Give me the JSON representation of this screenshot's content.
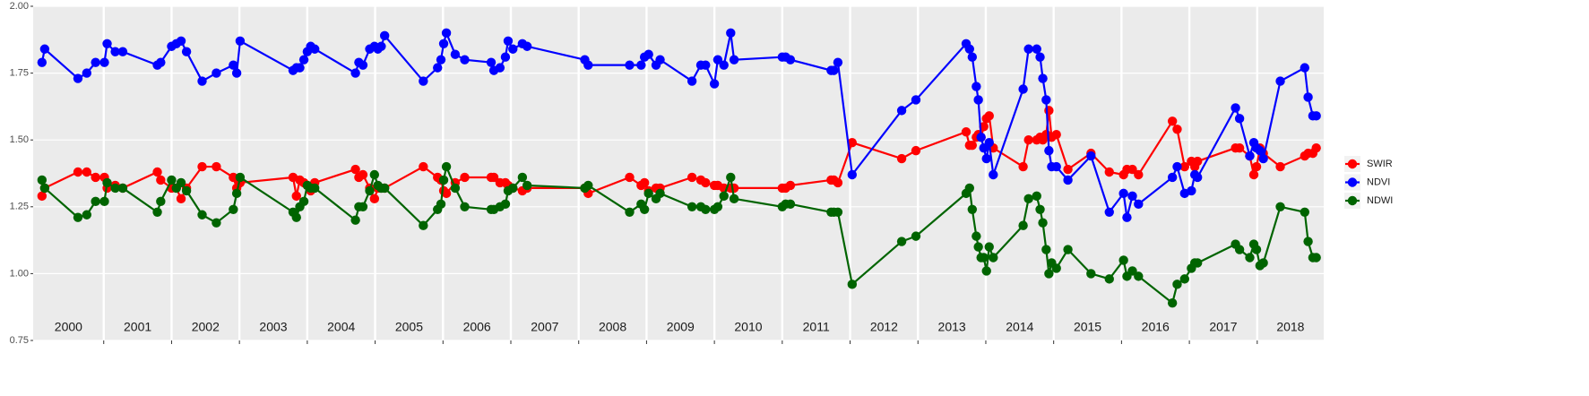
{
  "chart_data": {
    "type": "line",
    "x": [
      2000.09,
      2000.13,
      2000.62,
      2000.75,
      2000.88,
      2001.01,
      2001.05,
      2001.17,
      2001.28,
      2001.79,
      2001.84,
      2002.0,
      2002.07,
      2002.14,
      2002.22,
      2002.45,
      2002.66,
      2002.91,
      2002.96,
      2003.01,
      2003.79,
      2003.84,
      2003.89,
      2003.95,
      2004.0,
      2004.05,
      2004.11,
      2004.71,
      2004.76,
      2004.82,
      2004.92,
      2004.99,
      2005.04,
      2005.09,
      2005.14,
      2005.71,
      2005.92,
      2005.97,
      2006.01,
      2006.05,
      2006.18,
      2006.32,
      2006.71,
      2006.75,
      2006.84,
      2006.92,
      2006.96,
      2007.03,
      2007.17,
      2007.24,
      2008.09,
      2008.14,
      2008.75,
      2008.92,
      2008.97,
      2009.03,
      2009.14,
      2009.2,
      2009.67,
      2009.8,
      2009.87,
      2010.0,
      2010.05,
      2010.14,
      2010.24,
      2010.29,
      2011.0,
      2011.05,
      2011.12,
      2011.72,
      2011.76,
      2011.82,
      2012.03,
      2012.76,
      2012.97,
      2013.71,
      2013.76,
      2013.8,
      2013.86,
      2013.89,
      2013.93,
      2013.97,
      2014.01,
      2014.05,
      2014.11,
      2014.55,
      2014.63,
      2014.75,
      2014.8,
      2014.84,
      2014.89,
      2014.93,
      2014.97,
      2015.04,
      2015.21,
      2015.55,
      2015.82,
      2016.03,
      2016.08,
      2016.16,
      2016.25,
      2016.75,
      2016.82,
      2016.93,
      2017.03,
      2017.08,
      2017.12,
      2017.68,
      2017.74,
      2017.89,
      2017.95,
      2017.99,
      2018.04,
      2018.09,
      2018.34,
      2018.7,
      2018.75,
      2018.82,
      2018.87
    ],
    "series": [
      {
        "name": "SWIR",
        "color": "#ff0000",
        "values": [
          1.29,
          1.32,
          1.38,
          1.38,
          1.36,
          1.36,
          1.32,
          1.33,
          1.32,
          1.38,
          1.35,
          1.32,
          1.32,
          1.28,
          1.32,
          1.4,
          1.4,
          1.36,
          1.32,
          1.34,
          1.36,
          1.29,
          1.35,
          1.34,
          1.33,
          1.31,
          1.34,
          1.39,
          1.36,
          1.37,
          1.32,
          1.28,
          1.32,
          1.32,
          1.32,
          1.4,
          1.36,
          1.35,
          1.31,
          1.3,
          1.34,
          1.36,
          1.36,
          1.36,
          1.34,
          1.34,
          1.33,
          1.32,
          1.31,
          1.32,
          1.32,
          1.3,
          1.36,
          1.33,
          1.34,
          1.31,
          1.32,
          1.32,
          1.36,
          1.35,
          1.34,
          1.33,
          1.33,
          1.32,
          1.32,
          1.32,
          1.32,
          1.32,
          1.33,
          1.35,
          1.35,
          1.34,
          1.49,
          1.43,
          1.46,
          1.53,
          1.48,
          1.48,
          1.51,
          1.52,
          1.51,
          1.55,
          1.58,
          1.59,
          1.47,
          1.4,
          1.5,
          1.5,
          1.51,
          1.5,
          1.52,
          1.61,
          1.51,
          1.52,
          1.39,
          1.45,
          1.38,
          1.37,
          1.39,
          1.39,
          1.37,
          1.57,
          1.54,
          1.4,
          1.42,
          1.4,
          1.42,
          1.47,
          1.47,
          1.44,
          1.37,
          1.4,
          1.47,
          1.45,
          1.4,
          1.44,
          1.45,
          1.45,
          1.47
        ]
      },
      {
        "name": "NDVI",
        "color": "#0000ff",
        "values": [
          1.79,
          1.84,
          1.73,
          1.75,
          1.79,
          1.79,
          1.86,
          1.83,
          1.83,
          1.78,
          1.79,
          1.85,
          1.86,
          1.87,
          1.83,
          1.72,
          1.75,
          1.78,
          1.75,
          1.87,
          1.76,
          1.77,
          1.77,
          1.8,
          1.83,
          1.85,
          1.84,
          1.75,
          1.79,
          1.78,
          1.84,
          1.85,
          1.84,
          1.85,
          1.89,
          1.72,
          1.77,
          1.8,
          1.86,
          1.9,
          1.82,
          1.8,
          1.79,
          1.76,
          1.77,
          1.81,
          1.87,
          1.84,
          1.86,
          1.85,
          1.8,
          1.78,
          1.78,
          1.78,
          1.81,
          1.82,
          1.78,
          1.8,
          1.72,
          1.78,
          1.78,
          1.71,
          1.8,
          1.78,
          1.9,
          1.8,
          1.81,
          1.81,
          1.8,
          1.76,
          1.76,
          1.79,
          1.37,
          1.61,
          1.65,
          1.86,
          1.84,
          1.81,
          1.7,
          1.65,
          1.51,
          1.47,
          1.43,
          1.49,
          1.37,
          1.69,
          1.84,
          1.84,
          1.81,
          1.73,
          1.65,
          1.46,
          1.4,
          1.4,
          1.35,
          1.44,
          1.23,
          1.3,
          1.21,
          1.29,
          1.26,
          1.36,
          1.4,
          1.3,
          1.31,
          1.37,
          1.36,
          1.62,
          1.58,
          1.44,
          1.49,
          1.47,
          1.46,
          1.43,
          1.72,
          1.77,
          1.66,
          1.59,
          1.59
        ]
      },
      {
        "name": "NDWI",
        "color": "#006400",
        "values": [
          1.35,
          1.32,
          1.21,
          1.22,
          1.27,
          1.27,
          1.34,
          1.32,
          1.32,
          1.23,
          1.27,
          1.35,
          1.32,
          1.34,
          1.31,
          1.22,
          1.19,
          1.24,
          1.3,
          1.36,
          1.23,
          1.21,
          1.25,
          1.27,
          1.33,
          1.32,
          1.32,
          1.2,
          1.25,
          1.25,
          1.31,
          1.37,
          1.33,
          1.32,
          1.32,
          1.18,
          1.24,
          1.26,
          1.35,
          1.4,
          1.32,
          1.25,
          1.24,
          1.24,
          1.25,
          1.26,
          1.31,
          1.32,
          1.36,
          1.33,
          1.32,
          1.33,
          1.23,
          1.26,
          1.24,
          1.3,
          1.28,
          1.3,
          1.25,
          1.25,
          1.24,
          1.24,
          1.25,
          1.29,
          1.36,
          1.28,
          1.25,
          1.26,
          1.26,
          1.23,
          1.23,
          1.23,
          0.96,
          1.12,
          1.14,
          1.3,
          1.32,
          1.24,
          1.14,
          1.1,
          1.06,
          1.06,
          1.01,
          1.1,
          1.06,
          1.18,
          1.28,
          1.29,
          1.24,
          1.19,
          1.09,
          1.0,
          1.04,
          1.02,
          1.09,
          1.0,
          0.98,
          1.05,
          0.99,
          1.01,
          0.99,
          0.89,
          0.96,
          0.98,
          1.02,
          1.04,
          1.04,
          1.11,
          1.09,
          1.06,
          1.11,
          1.09,
          1.03,
          1.04,
          1.25,
          1.23,
          1.12,
          1.06,
          1.06
        ]
      }
    ],
    "xlim": [
      1999.96,
      2018.98
    ],
    "xticks": [
      2001,
      2002,
      2003,
      2004,
      2005,
      2006,
      2007,
      2008,
      2009,
      2010,
      2011,
      2012,
      2013,
      2014,
      2015,
      2016,
      2017,
      2018
    ],
    "year_labels": [
      "2000",
      "2001",
      "2002",
      "2003",
      "2004",
      "2005",
      "2006",
      "2007",
      "2008",
      "2009",
      "2010",
      "2011",
      "2012",
      "2013",
      "2014",
      "2015",
      "2016",
      "2017",
      "2018"
    ],
    "ylim": [
      0.75,
      2.0
    ],
    "yticks": [
      {
        "value": 0.75,
        "label": "0.75"
      },
      {
        "value": 1.0,
        "label": "1.00"
      },
      {
        "value": 1.25,
        "label": "1.25"
      },
      {
        "value": 1.5,
        "label": "1.50"
      },
      {
        "value": 1.75,
        "label": "1.75"
      },
      {
        "value": 2.0,
        "label": "2.00"
      }
    ],
    "grid": true,
    "legend": "right"
  }
}
